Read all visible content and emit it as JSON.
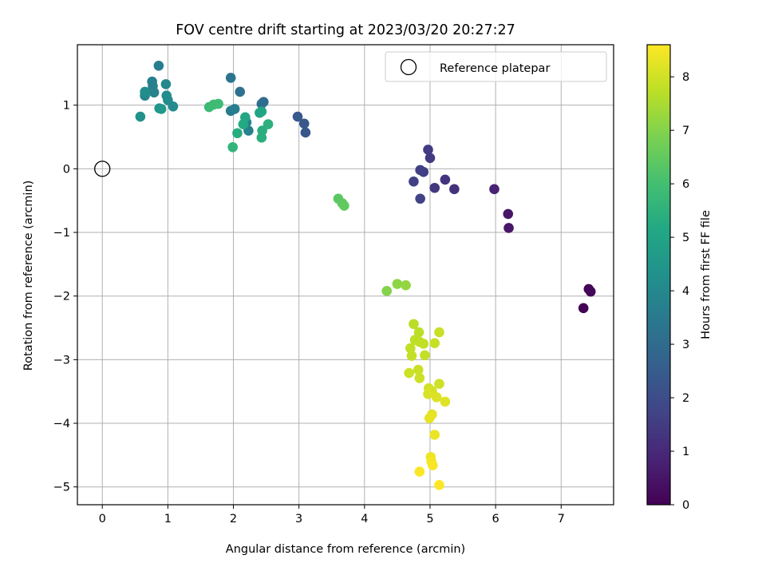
{
  "chart_data": {
    "type": "scatter",
    "title": "FOV centre drift starting at 2023/03/20 20:27:27",
    "xlabel": "Angular distance from reference (arcmin)",
    "ylabel": "Rotation from reference (arcmin)",
    "xlim": [
      -0.38,
      7.8
    ],
    "ylim": [
      -5.28,
      1.95
    ],
    "xticks": [
      0,
      1,
      2,
      3,
      4,
      5,
      6,
      7
    ],
    "yticks": [
      1,
      0,
      -1,
      -2,
      -3,
      -4,
      -5
    ],
    "grid": true,
    "legend": {
      "position": "top-right",
      "entries": [
        "Reference platepar"
      ]
    },
    "reference_point": {
      "x": 0,
      "y": 0
    },
    "colorbar": {
      "label": "Hours from first FF file",
      "range": [
        0,
        8.6
      ],
      "ticks": [
        0,
        1,
        2,
        3,
        4,
        5,
        6,
        7,
        8
      ],
      "colormap": "viridis"
    },
    "points": [
      {
        "x": 7.34,
        "y": -2.19,
        "c": 0.05
      },
      {
        "x": 7.42,
        "y": -1.89,
        "c": 0.1
      },
      {
        "x": 7.45,
        "y": -1.93,
        "c": 0.15
      },
      {
        "x": 6.19,
        "y": -0.71,
        "c": 0.5
      },
      {
        "x": 6.2,
        "y": -0.93,
        "c": 0.55
      },
      {
        "x": 5.98,
        "y": -0.32,
        "c": 0.8
      },
      {
        "x": 5.37,
        "y": -0.32,
        "c": 1.2
      },
      {
        "x": 5.23,
        "y": -0.17,
        "c": 1.3
      },
      {
        "x": 5.07,
        "y": -0.3,
        "c": 1.4
      },
      {
        "x": 5.0,
        "y": 0.17,
        "c": 1.45
      },
      {
        "x": 4.97,
        "y": 0.3,
        "c": 1.5
      },
      {
        "x": 4.9,
        "y": -0.05,
        "c": 1.55
      },
      {
        "x": 4.85,
        "y": -0.02,
        "c": 1.6
      },
      {
        "x": 4.75,
        "y": -0.2,
        "c": 1.65
      },
      {
        "x": 4.85,
        "y": -0.47,
        "c": 1.7
      },
      {
        "x": 3.1,
        "y": 0.57,
        "c": 2.3
      },
      {
        "x": 3.08,
        "y": 0.71,
        "c": 2.35
      },
      {
        "x": 2.98,
        "y": 0.82,
        "c": 2.4
      },
      {
        "x": 2.46,
        "y": 1.05,
        "c": 3.0
      },
      {
        "x": 2.43,
        "y": 1.02,
        "c": 3.05
      },
      {
        "x": 2.1,
        "y": 1.21,
        "c": 3.2
      },
      {
        "x": 1.96,
        "y": 1.43,
        "c": 3.3
      },
      {
        "x": 1.96,
        "y": 0.91,
        "c": 3.5
      },
      {
        "x": 2.02,
        "y": 0.94,
        "c": 3.6
      },
      {
        "x": 2.23,
        "y": 0.6,
        "c": 3.8
      },
      {
        "x": 2.2,
        "y": 0.73,
        "c": 3.9
      },
      {
        "x": 0.86,
        "y": 1.62,
        "c": 3.6
      },
      {
        "x": 0.76,
        "y": 1.37,
        "c": 3.7
      },
      {
        "x": 0.77,
        "y": 1.3,
        "c": 3.75
      },
      {
        "x": 0.79,
        "y": 1.2,
        "c": 3.8
      },
      {
        "x": 0.65,
        "y": 1.15,
        "c": 3.9
      },
      {
        "x": 0.97,
        "y": 1.33,
        "c": 4.0
      },
      {
        "x": 1.08,
        "y": 0.98,
        "c": 4.05
      },
      {
        "x": 1.0,
        "y": 1.08,
        "c": 4.1
      },
      {
        "x": 0.98,
        "y": 1.15,
        "c": 4.15
      },
      {
        "x": 0.65,
        "y": 1.21,
        "c": 4.2
      },
      {
        "x": 0.58,
        "y": 0.82,
        "c": 4.3
      },
      {
        "x": 0.87,
        "y": 0.95,
        "c": 4.5
      },
      {
        "x": 0.9,
        "y": 0.94,
        "c": 4.55
      },
      {
        "x": 2.4,
        "y": 0.88,
        "c": 5.0
      },
      {
        "x": 2.43,
        "y": 0.9,
        "c": 5.05
      },
      {
        "x": 2.18,
        "y": 0.81,
        "c": 5.1
      },
      {
        "x": 2.15,
        "y": 0.7,
        "c": 5.2
      },
      {
        "x": 2.06,
        "y": 0.56,
        "c": 5.3
      },
      {
        "x": 2.44,
        "y": 0.6,
        "c": 5.35
      },
      {
        "x": 2.43,
        "y": 0.49,
        "c": 5.4
      },
      {
        "x": 2.53,
        "y": 0.7,
        "c": 5.45
      },
      {
        "x": 1.99,
        "y": 0.34,
        "c": 5.6
      },
      {
        "x": 1.63,
        "y": 0.97,
        "c": 5.8
      },
      {
        "x": 1.7,
        "y": 1.01,
        "c": 5.85
      },
      {
        "x": 1.77,
        "y": 1.02,
        "c": 5.9
      },
      {
        "x": 3.6,
        "y": -0.47,
        "c": 6.4
      },
      {
        "x": 3.66,
        "y": -0.54,
        "c": 6.45
      },
      {
        "x": 3.69,
        "y": -0.58,
        "c": 6.5
      },
      {
        "x": 4.34,
        "y": -1.92,
        "c": 7.0
      },
      {
        "x": 4.5,
        "y": -1.81,
        "c": 7.1
      },
      {
        "x": 4.63,
        "y": -1.83,
        "c": 7.2
      },
      {
        "x": 4.75,
        "y": -2.44,
        "c": 7.7
      },
      {
        "x": 4.83,
        "y": -2.57,
        "c": 7.72
      },
      {
        "x": 4.77,
        "y": -2.69,
        "c": 7.74
      },
      {
        "x": 4.84,
        "y": -2.72,
        "c": 7.76
      },
      {
        "x": 4.9,
        "y": -2.75,
        "c": 7.78
      },
      {
        "x": 4.7,
        "y": -2.82,
        "c": 7.8
      },
      {
        "x": 4.72,
        "y": -2.94,
        "c": 7.82
      },
      {
        "x": 4.92,
        "y": -2.93,
        "c": 7.84
      },
      {
        "x": 5.07,
        "y": -2.74,
        "c": 7.86
      },
      {
        "x": 5.14,
        "y": -2.57,
        "c": 7.88
      },
      {
        "x": 4.82,
        "y": -3.16,
        "c": 7.9
      },
      {
        "x": 4.68,
        "y": -3.21,
        "c": 7.92
      },
      {
        "x": 4.84,
        "y": -3.29,
        "c": 7.94
      },
      {
        "x": 5.14,
        "y": -3.38,
        "c": 7.96
      },
      {
        "x": 4.98,
        "y": -3.45,
        "c": 8.0
      },
      {
        "x": 5.03,
        "y": -3.49,
        "c": 8.05
      },
      {
        "x": 4.97,
        "y": -3.54,
        "c": 8.1
      },
      {
        "x": 5.1,
        "y": -3.59,
        "c": 8.15
      },
      {
        "x": 5.23,
        "y": -3.66,
        "c": 8.2
      },
      {
        "x": 5.03,
        "y": -3.86,
        "c": 8.25
      },
      {
        "x": 4.99,
        "y": -3.92,
        "c": 8.3
      },
      {
        "x": 5.07,
        "y": -4.18,
        "c": 8.35
      },
      {
        "x": 5.01,
        "y": -4.53,
        "c": 8.4
      },
      {
        "x": 5.02,
        "y": -4.6,
        "c": 8.45
      },
      {
        "x": 5.04,
        "y": -4.66,
        "c": 8.5
      },
      {
        "x": 4.84,
        "y": -4.76,
        "c": 8.55
      },
      {
        "x": 5.14,
        "y": -4.97,
        "c": 8.6
      }
    ]
  }
}
